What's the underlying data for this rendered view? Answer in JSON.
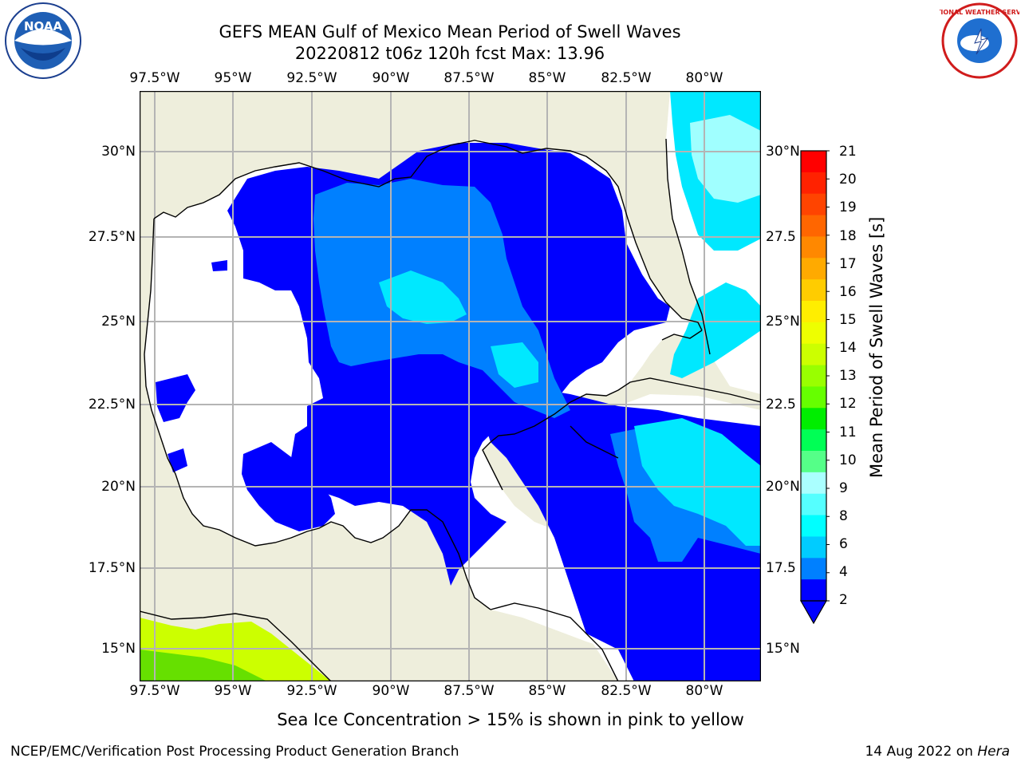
{
  "title": {
    "line1": "GEFS MEAN Gulf of Mexico Mean Period of Swell Waves",
    "line2": "20220812 t06z 120h fcst   Max: 13.96"
  },
  "map": {
    "lon_labels": [
      "97.5°W",
      "95°W",
      "92.5°W",
      "90°W",
      "87.5°W",
      "85°W",
      "82.5°W",
      "80°W"
    ],
    "lat_labels": [
      "30°N",
      "27.5°N",
      "25°N",
      "22.5°N",
      "20°N",
      "17.5°N",
      "15°N"
    ],
    "lat_labels_right": [
      "30°N",
      "27.5",
      "25°N",
      "22.5",
      "20°N",
      "17.5",
      "15°N"
    ],
    "colors": {
      "land": "#eeeedc",
      "no_data": "#ffffff",
      "class_2_4": "#0000ff",
      "class_4_6": "#0080ff",
      "class_6_8": "#00e8ff",
      "class_8_9": "#a0ffff",
      "ice_yellowgreen": "#ccff00",
      "ice_green": "#66e000"
    }
  },
  "colorbar": {
    "label": "Mean Period of Swell Waves [s]",
    "ticks": [
      "21",
      "20",
      "19",
      "18",
      "17",
      "16",
      "15",
      "14",
      "13",
      "12",
      "11",
      "10",
      "9",
      "8",
      "6",
      "4",
      "2"
    ],
    "colors_top_to_bottom": [
      "#ff0000",
      "#ff2200",
      "#ff4400",
      "#ff6600",
      "#ff8800",
      "#ffaa00",
      "#ffcc00",
      "#ffee00",
      "#eeff00",
      "#ccff00",
      "#99ff00",
      "#66ff00",
      "#00ee00",
      "#00ff55",
      "#55ff88",
      "#aaffff",
      "#55ffff",
      "#00ffff",
      "#00ccff",
      "#0080ff",
      "#0000ff"
    ]
  },
  "note": "Sea Ice Concentration > 15% is shown in pink to yellow",
  "footer": {
    "left": "NCEP/EMC/Verification Post Processing Product Generation Branch",
    "date": "14 Aug 2022 on ",
    "host": "Hera"
  },
  "logos": {
    "noaa": "NOAA",
    "nws_ring": "NATIONAL WEATHER SERVICE"
  }
}
